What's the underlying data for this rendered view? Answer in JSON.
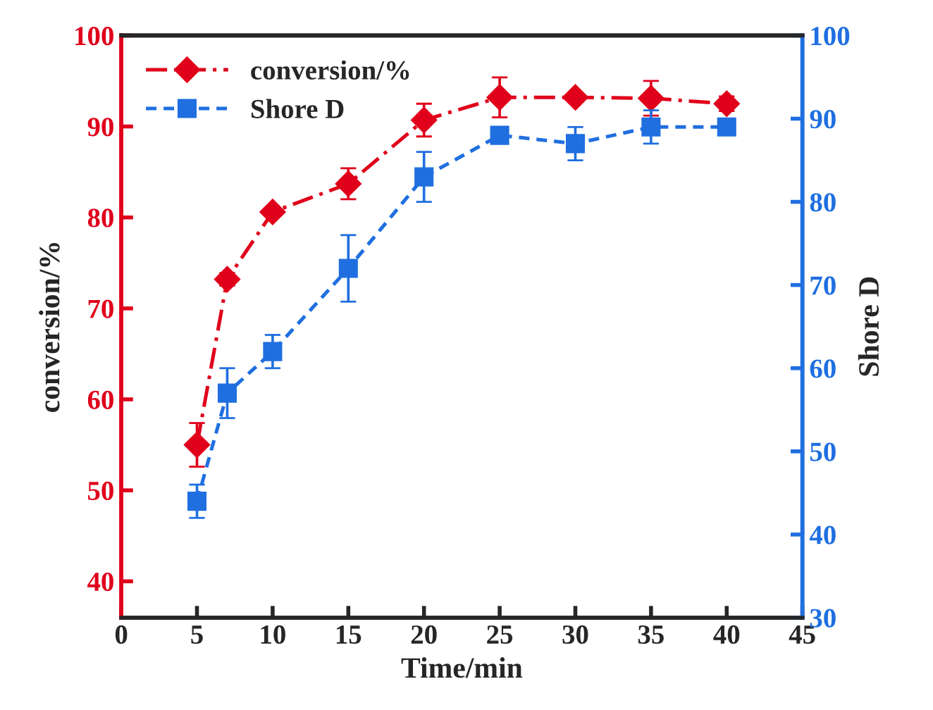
{
  "chart_data": {
    "type": "line",
    "xlabel": "Time/min",
    "ylabel": "conversion/%",
    "y2label": "Shore D",
    "x": [
      5,
      7,
      10,
      15,
      20,
      25,
      30,
      35,
      40
    ],
    "series": [
      {
        "name": "conversion/%",
        "color": "#e0001b",
        "marker": "diamond",
        "line_style": "dashdot",
        "values": [
          55,
          73.2,
          80.6,
          83.7,
          90.7,
          93.2,
          93.2,
          93.1,
          92.5
        ],
        "errors": [
          2.4,
          0.7,
          0.5,
          1.7,
          1.8,
          2.2,
          0.5,
          1.9,
          0.8
        ]
      },
      {
        "name": "Shore D",
        "color": "#1f6fe0",
        "marker": "square",
        "line_style": "dashed",
        "axis": "y2",
        "values": [
          44,
          57,
          62,
          72,
          83,
          88,
          87,
          89,
          89
        ],
        "errors": [
          2,
          3,
          2,
          4,
          3,
          0.5,
          2,
          2,
          0.5
        ]
      }
    ],
    "xlim": [
      0,
      45
    ],
    "xticks": [
      0,
      5,
      10,
      15,
      20,
      25,
      30,
      35,
      40,
      45
    ],
    "ylim": [
      36,
      100
    ],
    "yticks": [
      40,
      50,
      60,
      70,
      80,
      90,
      100
    ],
    "y2lim": [
      30,
      100
    ],
    "y2ticks": [
      30,
      40,
      50,
      60,
      70,
      80,
      90,
      100
    ],
    "legend": "top left",
    "grid": false
  }
}
